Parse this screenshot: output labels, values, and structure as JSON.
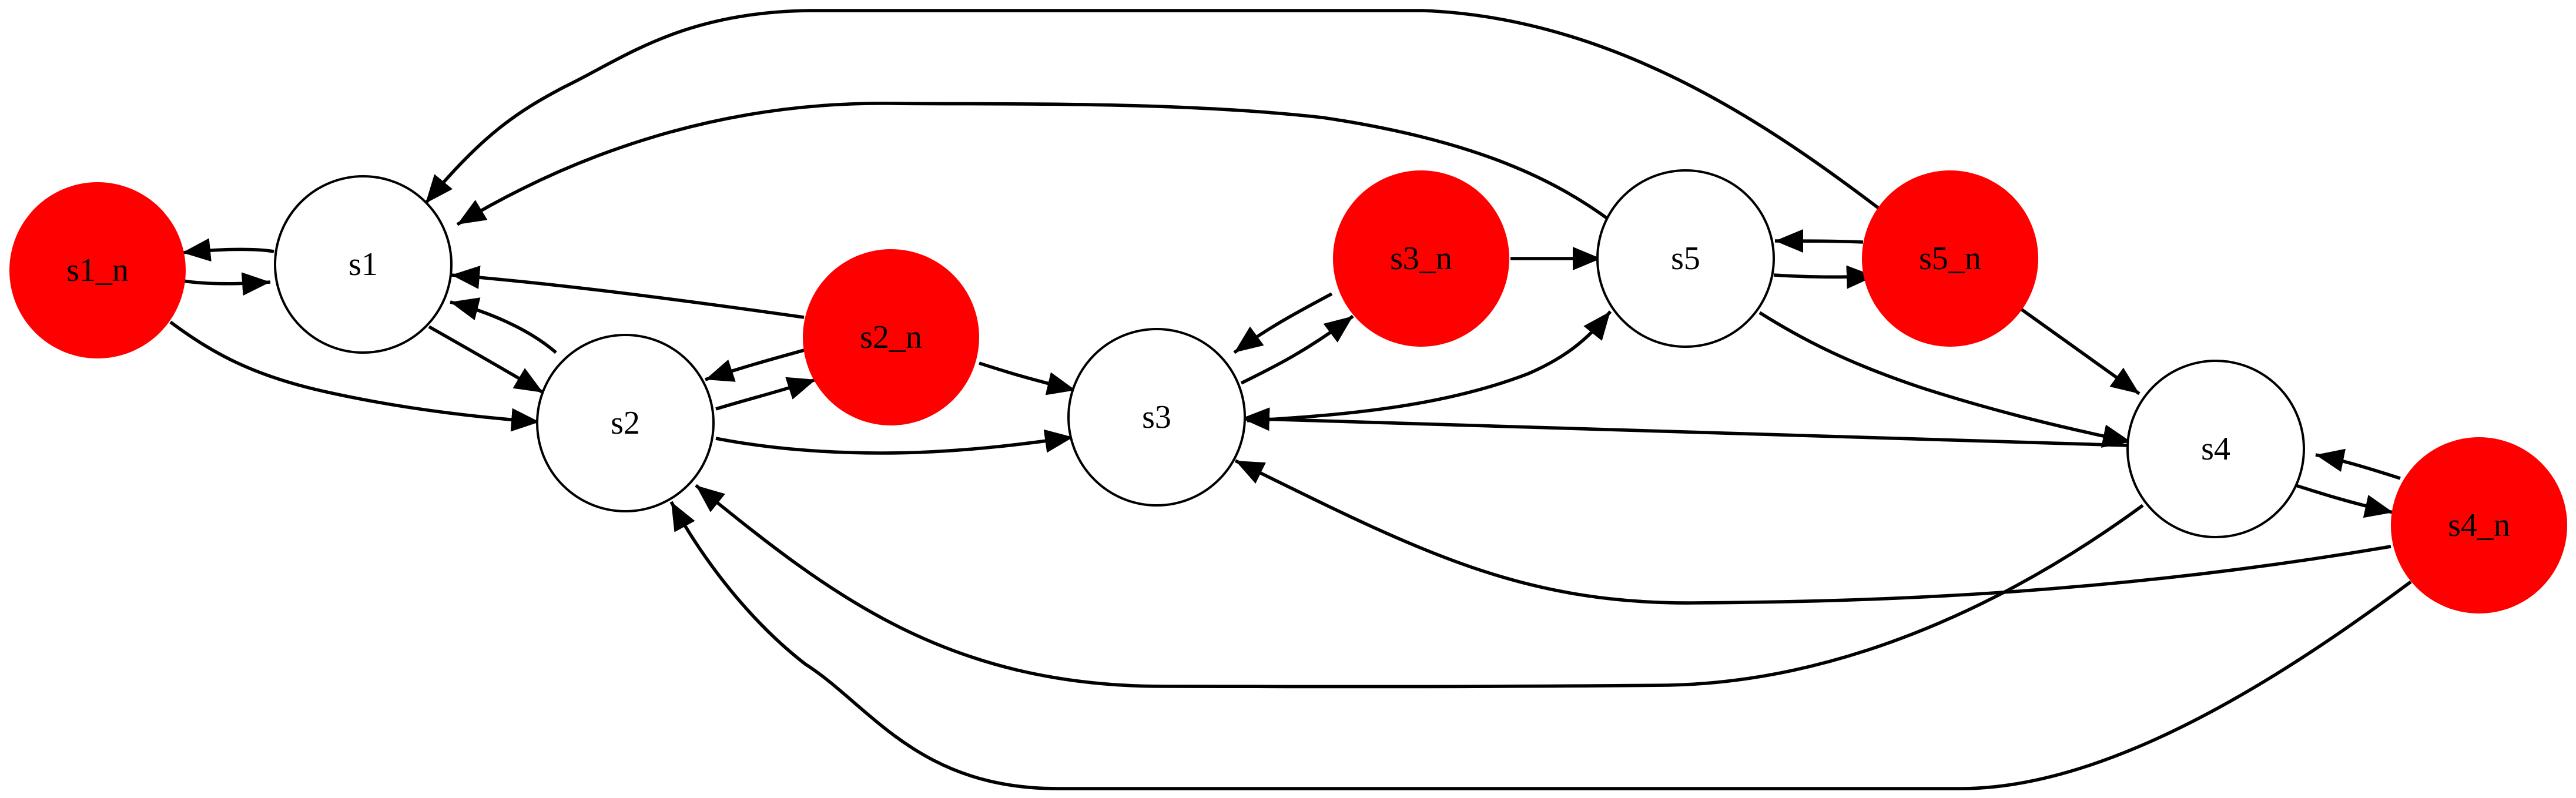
{
  "nodes": [
    {
      "id": "s1_n",
      "label": "s1_n",
      "fill": "#ff0000",
      "filled": true
    },
    {
      "id": "s1",
      "label": "s1",
      "fill": "#ffffff",
      "filled": false
    },
    {
      "id": "s2",
      "label": "s2",
      "fill": "#ffffff",
      "filled": false
    },
    {
      "id": "s2_n",
      "label": "s2_n",
      "fill": "#ff0000",
      "filled": true
    },
    {
      "id": "s3",
      "label": "s3",
      "fill": "#ffffff",
      "filled": false
    },
    {
      "id": "s3_n",
      "label": "s3_n",
      "fill": "#ff0000",
      "filled": true
    },
    {
      "id": "s5",
      "label": "s5",
      "fill": "#ffffff",
      "filled": false
    },
    {
      "id": "s5_n",
      "label": "s5_n",
      "fill": "#ff0000",
      "filled": true
    },
    {
      "id": "s4",
      "label": "s4",
      "fill": "#ffffff",
      "filled": false
    },
    {
      "id": "s4_n",
      "label": "s4_n",
      "fill": "#ff0000",
      "filled": true
    }
  ],
  "edges": [
    {
      "from": "s1",
      "to": "s1_n"
    },
    {
      "from": "s1_n",
      "to": "s1"
    },
    {
      "from": "s1_n",
      "to": "s2"
    },
    {
      "from": "s1",
      "to": "s2"
    },
    {
      "from": "s2",
      "to": "s1"
    },
    {
      "from": "s2_n",
      "to": "s1"
    },
    {
      "from": "s5",
      "to": "s1"
    },
    {
      "from": "s5_n",
      "to": "s1"
    },
    {
      "from": "s2",
      "to": "s2_n"
    },
    {
      "from": "s2_n",
      "to": "s2"
    },
    {
      "from": "s2_n",
      "to": "s3"
    },
    {
      "from": "s2",
      "to": "s3"
    },
    {
      "from": "s3",
      "to": "s3_n"
    },
    {
      "from": "s3_n",
      "to": "s3"
    },
    {
      "from": "s3_n",
      "to": "s5"
    },
    {
      "from": "s3",
      "to": "s5"
    },
    {
      "from": "s5",
      "to": "s3"
    },
    {
      "from": "s4",
      "to": "s3"
    },
    {
      "from": "s4_n",
      "to": "s3"
    },
    {
      "from": "s5",
      "to": "s5_n"
    },
    {
      "from": "s5_n",
      "to": "s5"
    },
    {
      "from": "s5_n",
      "to": "s4"
    },
    {
      "from": "s5",
      "to": "s4"
    },
    {
      "from": "s4",
      "to": "s4_n"
    },
    {
      "from": "s4_n",
      "to": "s4"
    },
    {
      "from": "s4",
      "to": "s2"
    },
    {
      "from": "s4_n",
      "to": "s2"
    }
  ]
}
